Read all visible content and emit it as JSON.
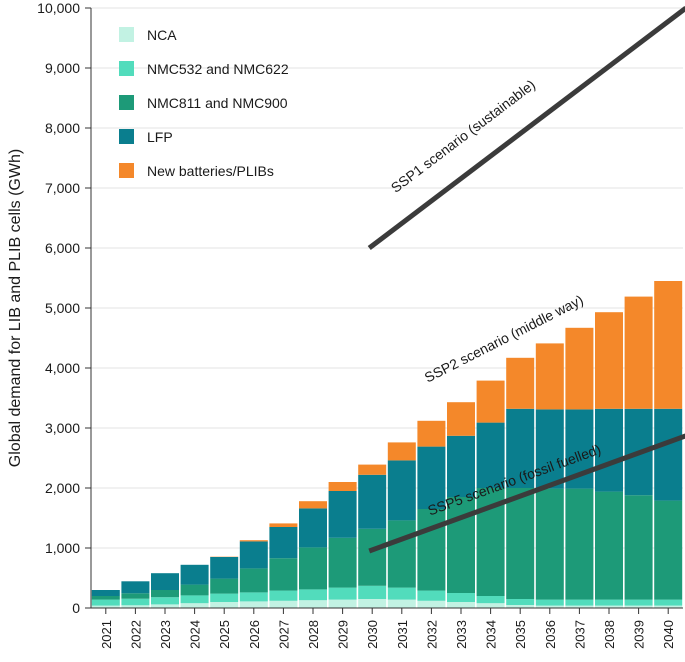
{
  "chart_data": {
    "type": "bar",
    "stacked": true,
    "ylabel": "Global demand for LIB and PLIB cells (GWh)",
    "ylim": [
      0,
      10000
    ],
    "yticks": [
      0,
      1000,
      2000,
      3000,
      4000,
      5000,
      6000,
      7000,
      8000,
      9000,
      10000
    ],
    "ytick_labels": [
      "0",
      "1,000",
      "2,000",
      "3,000",
      "4,000",
      "5,000",
      "6,000",
      "7,000",
      "8,000",
      "9,000",
      "10,000"
    ],
    "categories": [
      "2021",
      "2022",
      "2023",
      "2024",
      "2025",
      "2026",
      "2027",
      "2028",
      "2029",
      "2030",
      "2031",
      "2032",
      "2033",
      "2034",
      "2035",
      "2036",
      "2037",
      "2038",
      "2039",
      "2040"
    ],
    "series": [
      {
        "name": "NCA",
        "color": "#c2f2e3",
        "values": [
          40,
          45,
          60,
          80,
          100,
          110,
          120,
          130,
          140,
          150,
          140,
          120,
          100,
          80,
          50,
          40,
          40,
          40,
          40,
          40
        ]
      },
      {
        "name": "NMC532 and NMC622",
        "color": "#52dcbc",
        "values": [
          100,
          110,
          120,
          130,
          140,
          150,
          170,
          180,
          200,
          220,
          200,
          170,
          150,
          120,
          100,
          100,
          100,
          100,
          100,
          100
        ]
      },
      {
        "name": "NMC811 and NMC900",
        "color": "#1d9a78",
        "values": [
          60,
          90,
          120,
          180,
          250,
          400,
          540,
          700,
          830,
          950,
          1120,
          1360,
          1600,
          1800,
          1850,
          1850,
          1850,
          1800,
          1740,
          1650
        ]
      },
      {
        "name": "LFP",
        "color": "#0a7e8e",
        "values": [
          100,
          200,
          280,
          330,
          360,
          450,
          520,
          650,
          780,
          900,
          1000,
          1040,
          1020,
          1090,
          1320,
          1320,
          1320,
          1380,
          1440,
          1530
        ]
      },
      {
        "name": "New batteries/PLIBs",
        "color": "#f4882a",
        "values": [
          0,
          0,
          0,
          0,
          5,
          20,
          60,
          120,
          150,
          170,
          300,
          430,
          560,
          700,
          850,
          1100,
          1360,
          1610,
          1870,
          2130
        ]
      }
    ],
    "legend_position": "top-left",
    "scenario_lines": [
      {
        "label": "SSP1 scenario (sustainable)",
        "start": [
          "2030",
          6000
        ],
        "end": [
          "2040",
          10000
        ]
      },
      {
        "label": "SSP5 scenario (fossil fuelled)",
        "start": [
          "2030",
          950
        ],
        "end": [
          "2040",
          2870
        ]
      }
    ],
    "annotations": [
      {
        "text": "SSP2 scenario (middle way)"
      }
    ]
  }
}
